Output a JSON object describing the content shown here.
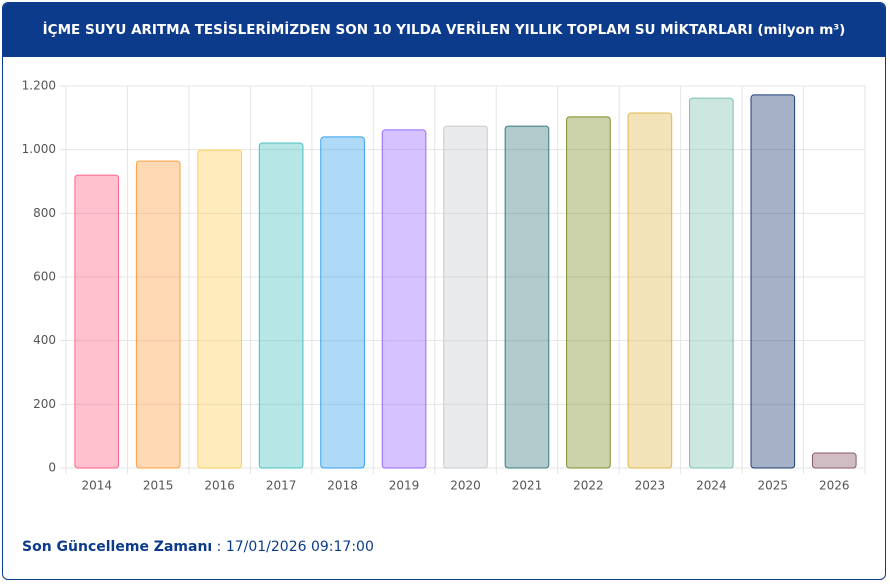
{
  "header": {
    "title": "İÇME SUYU ARITMA TESİSLERİMİZDEN SON 10 YILDA VERİLEN YILLIK TOPLAM SU MİKTARLARI (milyon m³)"
  },
  "chart_data": {
    "type": "bar",
    "categories": [
      "2014",
      "2015",
      "2016",
      "2017",
      "2018",
      "2019",
      "2020",
      "2021",
      "2022",
      "2023",
      "2024",
      "2025",
      "2026"
    ],
    "values": [
      920,
      964,
      999,
      1021,
      1040,
      1062,
      1074,
      1074,
      1103,
      1115,
      1162,
      1172,
      47
    ],
    "colors": [
      "#ff6384",
      "#ff9f40",
      "#ffcd56",
      "#4bc0c0",
      "#36a2eb",
      "#9966ff",
      "#c9cbcf",
      "#3d7a80",
      "#7f8f2a",
      "#e0b850",
      "#7cc3b0",
      "#1f3d73",
      "#8a5a6a"
    ],
    "ylim": [
      0,
      1200
    ],
    "yticks": [
      0,
      200,
      400,
      600,
      800,
      {
        "value": 1000,
        "label": "1.000"
      },
      {
        "value": 1200,
        "label": "1.200"
      }
    ],
    "grid": true
  },
  "footer": {
    "label": "Son Güncelleme Zamanı",
    "value": ": 17/01/2026 09:17:00"
  }
}
